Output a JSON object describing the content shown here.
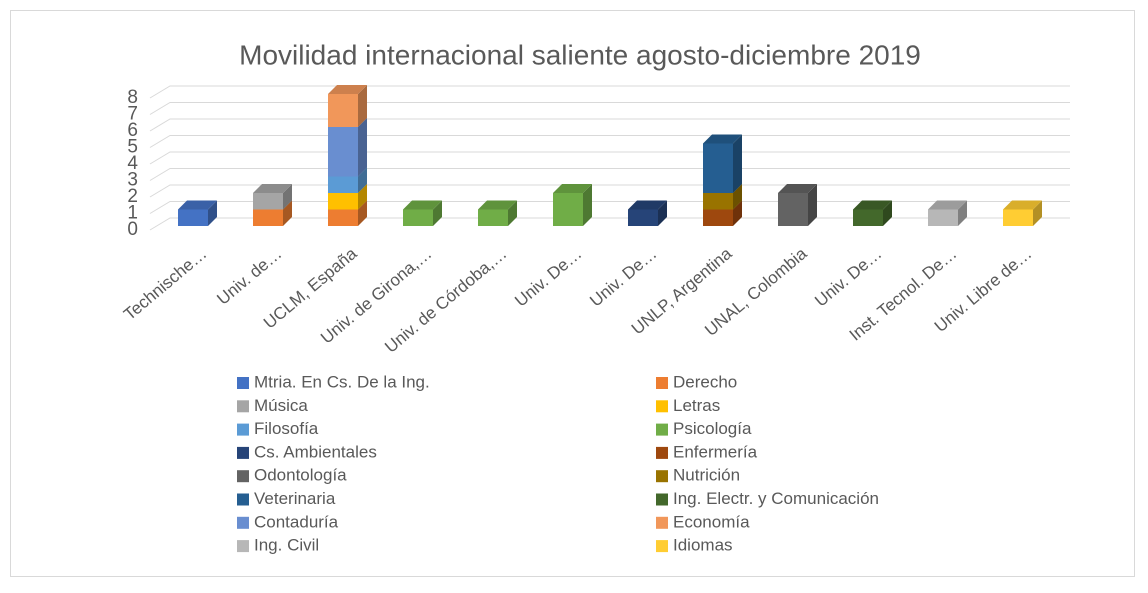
{
  "chart_data": {
    "type": "bar3d_stacked",
    "title": "Movilidad internacional saliente agosto-diciembre 2019",
    "categories": [
      "Technische…",
      "Univ. de…",
      "UCLM, España",
      "Univ. de Girona,…",
      "Univ. de Córdoba,…",
      "Univ. De…",
      "Univ. De…",
      "UNLP, Argentina",
      "UNAL, Colombia",
      "Univ. De…",
      "Inst. Tecnol. De…",
      "Univ. Libre de…"
    ],
    "series": [
      {
        "name": "Mtria. En Cs. De la Ing.",
        "color": "#4472c4",
        "values": [
          1,
          null,
          null,
          null,
          null,
          null,
          null,
          null,
          null,
          null,
          null,
          null
        ]
      },
      {
        "name": "Derecho",
        "color": "#ed7d31",
        "values": [
          null,
          1,
          1,
          null,
          null,
          null,
          null,
          null,
          null,
          null,
          null,
          null
        ]
      },
      {
        "name": "Música",
        "color": "#a5a5a5",
        "values": [
          null,
          1,
          null,
          null,
          null,
          null,
          null,
          null,
          null,
          null,
          null,
          null
        ]
      },
      {
        "name": "Letras",
        "color": "#ffc000",
        "values": [
          null,
          null,
          1,
          null,
          null,
          null,
          null,
          null,
          null,
          null,
          null,
          null
        ]
      },
      {
        "name": "Filosofía",
        "color": "#5b9bd5",
        "values": [
          null,
          null,
          1,
          null,
          null,
          null,
          null,
          null,
          null,
          null,
          null,
          null
        ]
      },
      {
        "name": "Psicología",
        "color": "#70ad47",
        "values": [
          null,
          null,
          null,
          1,
          1,
          2,
          null,
          null,
          null,
          null,
          null,
          null
        ]
      },
      {
        "name": "Cs. Ambientales",
        "color": "#264478",
        "values": [
          null,
          null,
          null,
          null,
          null,
          null,
          1,
          null,
          null,
          null,
          null,
          null
        ]
      },
      {
        "name": "Enfermería",
        "color": "#9e480e",
        "values": [
          null,
          null,
          null,
          null,
          null,
          null,
          null,
          1,
          null,
          null,
          null,
          null
        ]
      },
      {
        "name": "Odontología",
        "color": "#636363",
        "values": [
          null,
          null,
          null,
          null,
          null,
          null,
          null,
          null,
          2,
          null,
          null,
          null
        ]
      },
      {
        "name": "Nutrición",
        "color": "#997300",
        "values": [
          null,
          null,
          null,
          null,
          null,
          null,
          null,
          1,
          null,
          null,
          null,
          null
        ]
      },
      {
        "name": "Veterinaria",
        "color": "#255e91",
        "values": [
          null,
          null,
          null,
          null,
          null,
          null,
          null,
          3,
          null,
          null,
          null,
          null
        ]
      },
      {
        "name": "Ing. Electr. y Comunicación",
        "color": "#43682b",
        "values": [
          null,
          null,
          null,
          null,
          null,
          null,
          null,
          null,
          null,
          1,
          null,
          null
        ]
      },
      {
        "name": "Contaduría",
        "color": "#698ed0",
        "values": [
          null,
          null,
          3,
          null,
          null,
          null,
          null,
          null,
          null,
          null,
          null,
          null
        ]
      },
      {
        "name": "Economía",
        "color": "#f1975a",
        "values": [
          null,
          null,
          2,
          null,
          null,
          null,
          null,
          null,
          null,
          null,
          null,
          null
        ]
      },
      {
        "name": "Ing. Civil",
        "color": "#b7b7b7",
        "values": [
          null,
          null,
          null,
          null,
          null,
          null,
          null,
          null,
          null,
          null,
          1,
          null
        ]
      },
      {
        "name": "Idiomas",
        "color": "#ffcd33",
        "values": [
          null,
          null,
          null,
          null,
          null,
          null,
          null,
          null,
          null,
          null,
          null,
          1
        ]
      }
    ],
    "ylim": [
      0,
      8
    ],
    "yticks": [
      0,
      1,
      2,
      3,
      4,
      5,
      6,
      7,
      8
    ],
    "grid": true,
    "legend": "bottom"
  }
}
